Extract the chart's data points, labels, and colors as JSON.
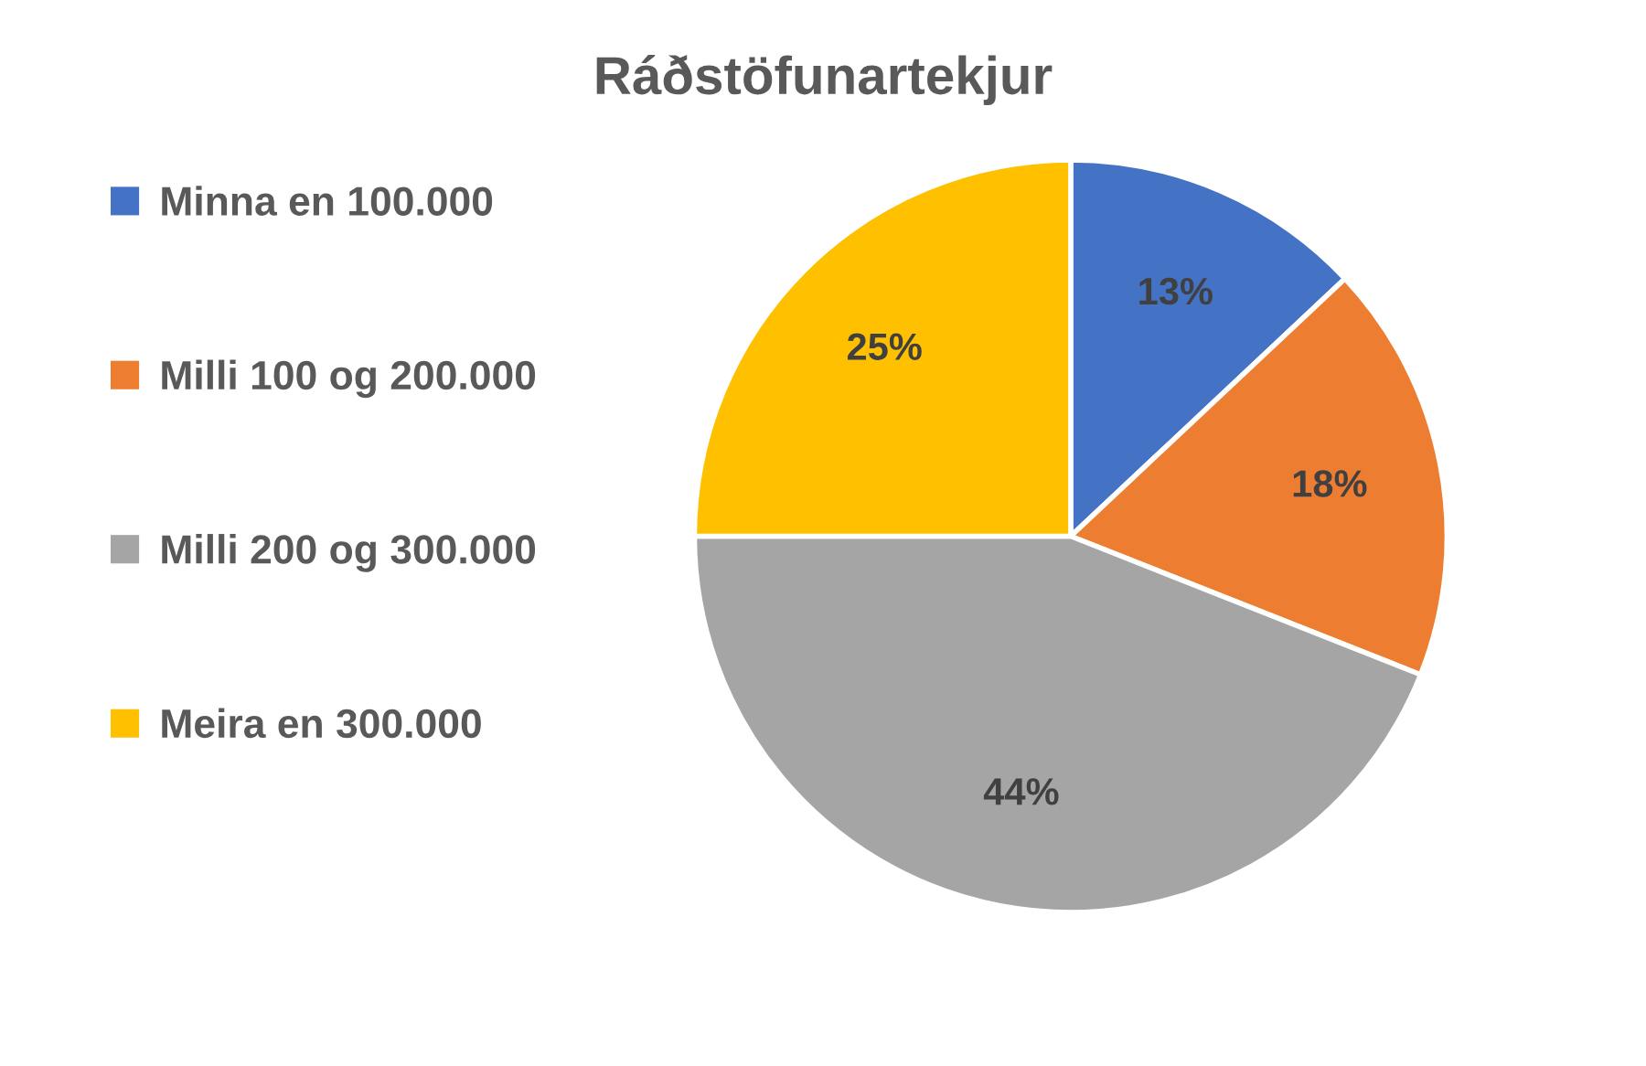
{
  "chart_data": {
    "type": "pie",
    "title": "Ráðstöfunartekjur",
    "categories": [
      "Minna en 100.000",
      "Milli 100 og 200.000",
      "Milli 200 og 300.000",
      "Meira en 300.000"
    ],
    "values": [
      13,
      18,
      44,
      25
    ],
    "value_labels": [
      "13%",
      "18%",
      "44%",
      "25%"
    ],
    "colors": [
      "#4472c4",
      "#ed7d31",
      "#a5a5a5",
      "#ffc000"
    ],
    "legend": "left"
  }
}
